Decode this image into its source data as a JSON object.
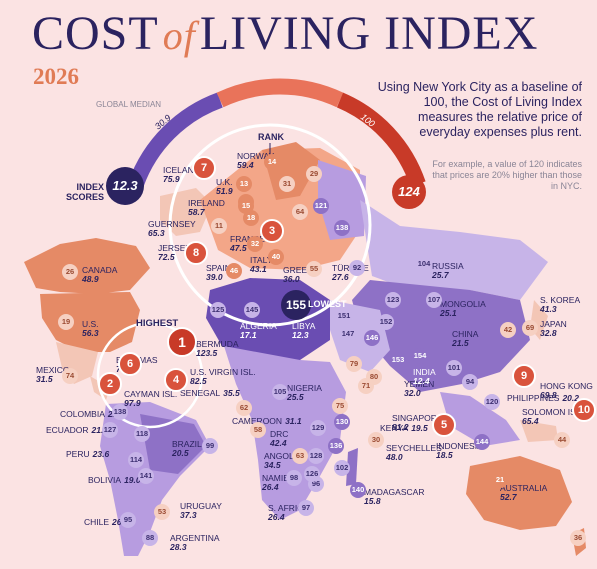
{
  "header": {
    "title_left": "COST",
    "title_of": "of",
    "title_right": "LIVING INDEX",
    "year": "2026",
    "description": "Using New York City as a baseline of 100, the Cost of Living Index measures the relative price of everyday expenses plus rent.",
    "example": "For example, a value of 120 indicates that prices are 20% higher than those in NYC."
  },
  "legend": {
    "global_median": "GLOBAL MEDIAN",
    "median_value": "30.9",
    "baseline_value": "100",
    "index_scores": "INDEX SCORES",
    "min_score": "12.3",
    "max_score": "124",
    "rank": "RANK",
    "highest": "HIGHEST",
    "lowest": "LOWEST"
  },
  "lowest": {
    "value": "155",
    "country": "LIBYA",
    "score": "12.3"
  },
  "countries": [
    {
      "name": "ICELAND",
      "value": "75.9"
    },
    {
      "name": "NORWAY",
      "value": "59.4"
    },
    {
      "name": "U.K.",
      "value": "51.9"
    },
    {
      "name": "IRELAND",
      "value": "58.7"
    },
    {
      "name": "GUERNSEY",
      "value": "65.3"
    },
    {
      "name": "FRANCE",
      "value": "47.5"
    },
    {
      "name": "JERSEY",
      "value": "72.5"
    },
    {
      "name": "ITALY",
      "value": "43.1"
    },
    {
      "name": "SPAIN",
      "value": "39.0"
    },
    {
      "name": "GREECE",
      "value": "36.0"
    },
    {
      "name": "TÜRKIYE",
      "value": "27.6"
    },
    {
      "name": "RUSSIA",
      "value": "25.7"
    },
    {
      "name": "CANADA",
      "value": "48.9"
    },
    {
      "name": "U.S.",
      "value": "56.3"
    },
    {
      "name": "ALGERIA",
      "value": "17.1"
    },
    {
      "name": "BERMUDA",
      "value": "123.5"
    },
    {
      "name": "BAHAMAS",
      "value": "77.1"
    },
    {
      "name": "MEXICO",
      "value": "31.5"
    },
    {
      "name": "U.S. VIRGIN ISL.",
      "value": "82.5"
    },
    {
      "name": "CAYMAN ISL.",
      "value": "97.9"
    },
    {
      "name": "SENEGAL",
      "value": "35.5"
    },
    {
      "name": "MONGOLIA",
      "value": "25.1"
    },
    {
      "name": "CHINA",
      "value": "21.5"
    },
    {
      "name": "S. KOREA",
      "value": "41.3"
    },
    {
      "name": "JAPAN",
      "value": "32.8"
    },
    {
      "name": "NIGERIA",
      "value": "25.5"
    },
    {
      "name": "YEMEN",
      "value": "32.0"
    },
    {
      "name": "INDIA",
      "value": "12.4"
    },
    {
      "name": "HONG KONG",
      "value": "69.8"
    },
    {
      "name": "PHILIPPINES",
      "value": "20.2"
    },
    {
      "name": "COLOMBIA",
      "value": "22.4"
    },
    {
      "name": "ECUADOR",
      "value": "21.0"
    },
    {
      "name": "CAMEROON",
      "value": "31.1"
    },
    {
      "name": "DRC",
      "value": "42.4"
    },
    {
      "name": "KENYA",
      "value": "19.5"
    },
    {
      "name": "SINGAPORE",
      "value": "81.2"
    },
    {
      "name": "SOLOMON ISL.",
      "value": "65.4"
    },
    {
      "name": "PERU",
      "value": "23.6"
    },
    {
      "name": "BRAZIL",
      "value": "20.5"
    },
    {
      "name": "ANGOLA",
      "value": "34.5"
    },
    {
      "name": "SEYCHELLES",
      "value": "48.0"
    },
    {
      "name": "INDONESIA",
      "value": "18.5"
    },
    {
      "name": "BOLIVIA",
      "value": "19.0"
    },
    {
      "name": "NAMIBIA",
      "value": "26.4"
    },
    {
      "name": "MADAGASCAR",
      "value": "15.8"
    },
    {
      "name": "AUSTRALIA",
      "value": "52.7"
    },
    {
      "name": "URUGUAY",
      "value": "37.3"
    },
    {
      "name": "S. AFRICA",
      "value": "26.4"
    },
    {
      "name": "CHILE",
      "value": "26.8"
    },
    {
      "name": "ARGENTINA",
      "value": "28.3"
    }
  ],
  "ranks": [
    "1",
    "2",
    "3",
    "4",
    "5",
    "6",
    "7",
    "8",
    "9",
    "10"
  ],
  "circles": [
    "14",
    "29",
    "31",
    "13",
    "22",
    "64",
    "121",
    "15",
    "11",
    "138",
    "18",
    "32",
    "40",
    "46",
    "55",
    "92",
    "104",
    "26",
    "19",
    "125",
    "145",
    "151",
    "74",
    "107",
    "123",
    "147",
    "146",
    "152",
    "153",
    "154",
    "42",
    "69",
    "62",
    "79",
    "80",
    "71",
    "94",
    "101",
    "120",
    "138",
    "127",
    "105",
    "58",
    "75",
    "118",
    "130",
    "30",
    "136",
    "114",
    "129",
    "44",
    "141",
    "63",
    "96",
    "128",
    "102",
    "21",
    "98",
    "140",
    "126",
    "97",
    "53",
    "95",
    "88",
    "36",
    "144",
    "99"
  ]
}
